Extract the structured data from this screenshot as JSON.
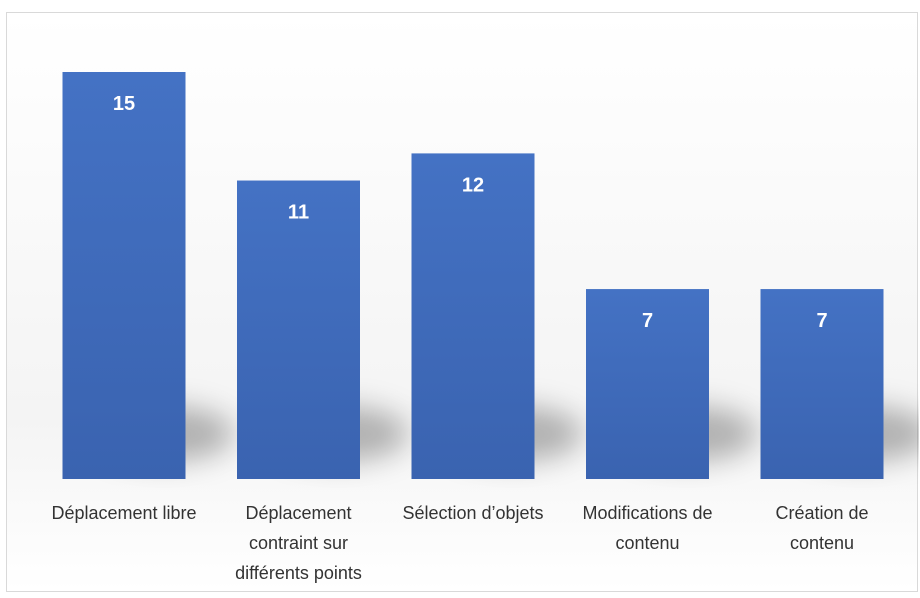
{
  "chart_data": {
    "type": "bar",
    "categories": [
      [
        "Déplacement libre"
      ],
      [
        "Déplacement",
        "contraint sur",
        "différents points"
      ],
      [
        "Sélection d’objets"
      ],
      [
        "Modifications de",
        "contenu"
      ],
      [
        "Création de",
        "contenu"
      ]
    ],
    "values": [
      15,
      11,
      12,
      7,
      7
    ],
    "title": "",
    "xlabel": "",
    "ylabel": "",
    "ylim": [
      0,
      16
    ],
    "grid": false,
    "legend": "none",
    "bar_color": "#4472C4",
    "bar_color_dark": "#2F5597",
    "value_label_color": "#FFFFFF"
  }
}
